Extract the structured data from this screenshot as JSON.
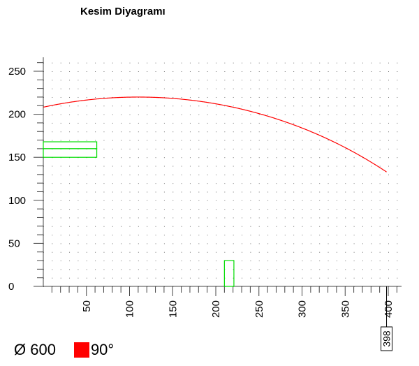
{
  "title": "Kesim Diyagramı",
  "legend": {
    "diameter_label": "Ø 600",
    "angle_label": "90°",
    "swatch_color": "#ff0000"
  },
  "chart_data": {
    "type": "scatter",
    "title": "Kesim Diyagramı",
    "xlabel": "",
    "ylabel": "",
    "xlim": [
      0,
      410
    ],
    "ylim": [
      0,
      258
    ],
    "grid": true,
    "x_ticks": [
      50,
      100,
      150,
      200,
      250,
      300,
      350,
      400
    ],
    "y_ticks": [
      0,
      50,
      100,
      150,
      200,
      250
    ],
    "arc": {
      "color": "#ff0000",
      "center_x": 110,
      "center_y": -300,
      "radius": 520,
      "x_start": 0,
      "x_end": 398
    },
    "rects": [
      {
        "x": 0,
        "y": 160,
        "w": 62,
        "h": 8,
        "color": "#00dd00"
      },
      {
        "x": 0,
        "y": 150,
        "w": 62,
        "h": 10,
        "color": "#00dd00"
      },
      {
        "x": 210,
        "y": 0,
        "w": 11,
        "h": 30,
        "color": "#00dd00"
      }
    ],
    "end_marker": {
      "x": 398,
      "label": "398"
    }
  }
}
